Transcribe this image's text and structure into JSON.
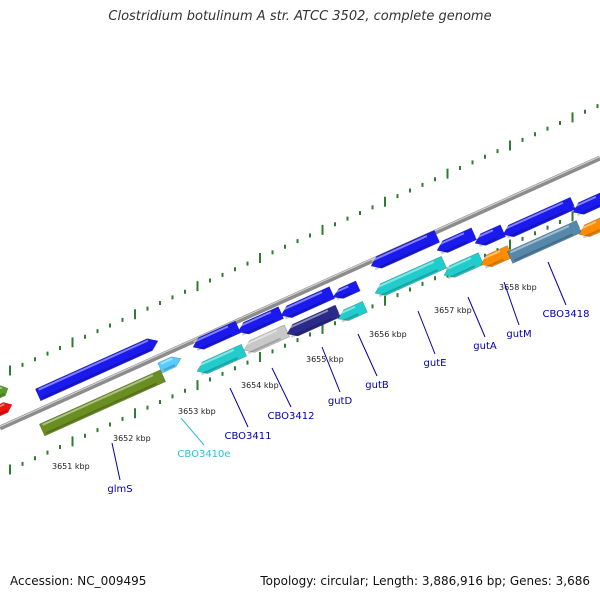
{
  "title": "Clostridium botulinum A str. ATCC 3502, complete genome",
  "footer": {
    "accession": "Accession: NC_009495",
    "topology": "Topology: circular; Length: 3,886,916 bp; Genes: 3,686"
  },
  "colors": {
    "backbone": "#8c8c8c",
    "tick": "#2e7d2e",
    "label": "#0000aa",
    "label_alt": "#33bbdd",
    "blue": "#1a1aee",
    "cyan": "#22cccc",
    "grey": "#c8c8c8",
    "olive": "#6b8e23",
    "orange": "#ff8c00",
    "navy": "#2a2a8a",
    "steel": "#5588aa",
    "light_blue": "#55ccff",
    "red": "#ee1111",
    "green": "#5a9a2a"
  },
  "kbp_labels": [
    "3651 kbp",
    "3652 kbp",
    "3653 kbp",
    "3654 kbp",
    "3655 kbp",
    "3656 kbp",
    "3657 kbp",
    "3658 kbp"
  ],
  "gene_labels": [
    "glmS",
    "CBO3410e",
    "CBO3411",
    "CBO3412",
    "gutD",
    "gutB",
    "gutE",
    "gutA",
    "gutM",
    "CBO3418"
  ]
}
